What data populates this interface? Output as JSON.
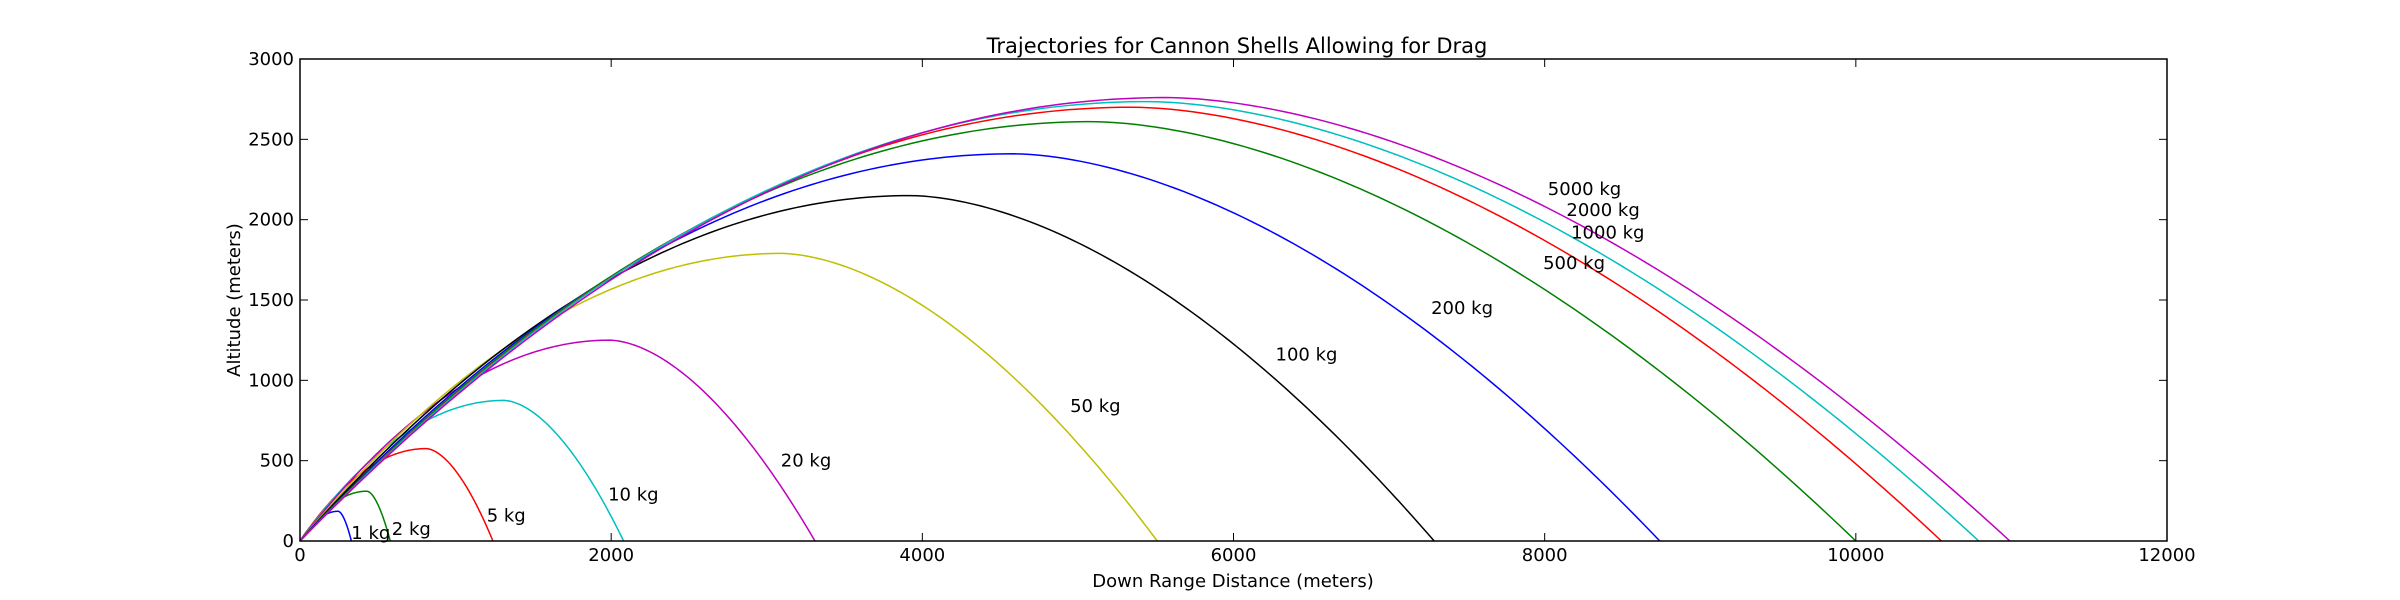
{
  "chart_data": {
    "type": "line",
    "title": "Trajectories for Cannon Shells Allowing for Drag",
    "xlabel": "Down Range Distance (meters)",
    "ylabel": "Altitude (meters)",
    "xlim": [
      0,
      12000
    ],
    "ylim": [
      0,
      3000
    ],
    "xticks": [
      0,
      2000,
      4000,
      6000,
      8000,
      10000,
      12000
    ],
    "yticks": [
      0,
      500,
      1000,
      1500,
      2000,
      2500,
      3000
    ],
    "grid": false,
    "legend": "none",
    "series": [
      {
        "name": "1 kg",
        "color": "#0000ff",
        "apex": [
          245,
          185
        ],
        "range": 330,
        "label_at": [
          330,
          50
        ]
      },
      {
        "name": "2 kg",
        "color": "#008000",
        "apex": [
          430,
          310
        ],
        "range": 580,
        "label_at": [
          590,
          75
        ]
      },
      {
        "name": "5 kg",
        "color": "#ff0000",
        "apex": [
          810,
          575
        ],
        "range": 1240,
        "label_at": [
          1200,
          160
        ]
      },
      {
        "name": "10 kg",
        "color": "#00bfbf",
        "apex": [
          1310,
          875
        ],
        "range": 2080,
        "label_at": [
          1980,
          290
        ]
      },
      {
        "name": "20 kg",
        "color": "#bf00bf",
        "apex": [
          1990,
          1250
        ],
        "range": 3310,
        "label_at": [
          3090,
          500
        ]
      },
      {
        "name": "50 kg",
        "color": "#bfbf00",
        "apex": [
          3090,
          1790
        ],
        "range": 5510,
        "label_at": [
          4950,
          840
        ]
      },
      {
        "name": "100 kg",
        "color": "#000000",
        "apex": [
          3920,
          2150
        ],
        "range": 7290,
        "label_at": [
          6270,
          1160
        ]
      },
      {
        "name": "200 kg",
        "color": "#0000ff",
        "apex": [
          4580,
          2410
        ],
        "range": 8740,
        "label_at": [
          7270,
          1450
        ]
      },
      {
        "name": "500 kg",
        "color": "#008000",
        "apex": [
          5090,
          2610
        ],
        "range": 10000,
        "label_at": [
          7990,
          1730
        ]
      },
      {
        "name": "1000 kg",
        "color": "#ff0000",
        "apex": [
          5350,
          2700
        ],
        "range": 10550,
        "label_at": [
          8170,
          1920
        ]
      },
      {
        "name": "2000 kg",
        "color": "#00bfbf",
        "apex": [
          5450,
          2735
        ],
        "range": 10790,
        "label_at": [
          8140,
          2060
        ]
      },
      {
        "name": "5000 kg",
        "color": "#bf00bf",
        "apex": [
          5570,
          2760
        ],
        "range": 10990,
        "label_at": [
          8020,
          2190
        ]
      }
    ]
  }
}
